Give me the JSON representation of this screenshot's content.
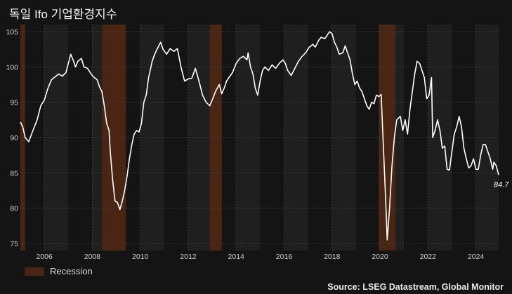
{
  "title": "독일 Ifo 기업환경지수",
  "source": "Source: LSEG Datastream, Global Monitor",
  "colors": {
    "background": "#141414",
    "plot_band_alt": "#1f1f1f",
    "recession": "#4a2513",
    "line": "#ffffff",
    "grid": "#3c3c3c"
  },
  "chart_data": {
    "type": "line",
    "title": "독일 Ifo 기업환경지수",
    "xlim": [
      2005.0,
      2024.95
    ],
    "ylim": [
      74,
      106
    ],
    "x_ticks": [
      2006,
      2008,
      2010,
      2012,
      2014,
      2016,
      2018,
      2020,
      2022,
      2024
    ],
    "y_ticks": [
      75,
      80,
      85,
      90,
      95,
      100,
      105
    ],
    "grid": true,
    "legend_position": "bottom-left",
    "legend": [
      {
        "label": "Recession",
        "color": "#4a2513"
      }
    ],
    "recessions": [
      [
        2005.0,
        2005.2
      ],
      [
        2008.4,
        2009.4
      ],
      [
        2012.9,
        2013.4
      ],
      [
        2019.95,
        2020.65
      ]
    ],
    "last_value_label": "84.7",
    "series": [
      {
        "color": "#ffffff",
        "points": [
          [
            2005.0,
            92.2
          ],
          [
            2005.1,
            91.5
          ],
          [
            2005.2,
            90.0
          ],
          [
            2005.35,
            89.4
          ],
          [
            2005.5,
            90.8
          ],
          [
            2005.7,
            92.5
          ],
          [
            2005.85,
            94.5
          ],
          [
            2006.0,
            95.3
          ],
          [
            2006.15,
            97.0
          ],
          [
            2006.3,
            98.2
          ],
          [
            2006.45,
            98.6
          ],
          [
            2006.6,
            99.0
          ],
          [
            2006.75,
            98.7
          ],
          [
            2006.9,
            99.2
          ],
          [
            2007.0,
            100.5
          ],
          [
            2007.1,
            101.8
          ],
          [
            2007.2,
            101.0
          ],
          [
            2007.3,
            100.0
          ],
          [
            2007.4,
            100.8
          ],
          [
            2007.55,
            101.2
          ],
          [
            2007.65,
            100.0
          ],
          [
            2007.8,
            99.8
          ],
          [
            2007.95,
            99.0
          ],
          [
            2008.05,
            98.6
          ],
          [
            2008.2,
            98.2
          ],
          [
            2008.3,
            97.2
          ],
          [
            2008.4,
            96.5
          ],
          [
            2008.5,
            94.5
          ],
          [
            2008.6,
            92.0
          ],
          [
            2008.7,
            91.0
          ],
          [
            2008.75,
            88.0
          ],
          [
            2008.85,
            84.0
          ],
          [
            2008.95,
            81.0
          ],
          [
            2009.05,
            80.8
          ],
          [
            2009.15,
            79.8
          ],
          [
            2009.25,
            81.0
          ],
          [
            2009.35,
            82.5
          ],
          [
            2009.45,
            84.5
          ],
          [
            2009.55,
            87.0
          ],
          [
            2009.65,
            89.0
          ],
          [
            2009.75,
            90.5
          ],
          [
            2009.85,
            91.0
          ],
          [
            2009.95,
            90.8
          ],
          [
            2010.05,
            92.0
          ],
          [
            2010.15,
            95.0
          ],
          [
            2010.25,
            96.0
          ],
          [
            2010.35,
            98.5
          ],
          [
            2010.5,
            100.8
          ],
          [
            2010.6,
            101.8
          ],
          [
            2010.7,
            102.5
          ],
          [
            2010.85,
            103.5
          ],
          [
            2010.95,
            102.5
          ],
          [
            2011.1,
            101.8
          ],
          [
            2011.25,
            102.6
          ],
          [
            2011.4,
            102.2
          ],
          [
            2011.55,
            102.6
          ],
          [
            2011.7,
            100.0
          ],
          [
            2011.85,
            98.0
          ],
          [
            2012.0,
            98.3
          ],
          [
            2012.15,
            98.4
          ],
          [
            2012.3,
            99.8
          ],
          [
            2012.45,
            98.0
          ],
          [
            2012.6,
            96.0
          ],
          [
            2012.75,
            95.0
          ],
          [
            2012.9,
            94.5
          ],
          [
            2013.0,
            95.3
          ],
          [
            2013.15,
            96.6
          ],
          [
            2013.3,
            97.5
          ],
          [
            2013.4,
            96.2
          ],
          [
            2013.5,
            97.0
          ],
          [
            2013.6,
            98.0
          ],
          [
            2013.7,
            98.5
          ],
          [
            2013.85,
            99.2
          ],
          [
            2014.0,
            100.5
          ],
          [
            2014.15,
            101.2
          ],
          [
            2014.3,
            101.5
          ],
          [
            2014.45,
            101.0
          ],
          [
            2014.5,
            102.0
          ],
          [
            2014.6,
            100.0
          ],
          [
            2014.7,
            99.0
          ],
          [
            2014.8,
            97.0
          ],
          [
            2014.9,
            96.0
          ],
          [
            2015.0,
            98.0
          ],
          [
            2015.1,
            99.5
          ],
          [
            2015.2,
            100.0
          ],
          [
            2015.35,
            99.5
          ],
          [
            2015.5,
            100.3
          ],
          [
            2015.65,
            99.8
          ],
          [
            2015.8,
            100.5
          ],
          [
            2015.95,
            101.0
          ],
          [
            2016.05,
            100.5
          ],
          [
            2016.15,
            99.5
          ],
          [
            2016.3,
            98.8
          ],
          [
            2016.45,
            99.8
          ],
          [
            2016.6,
            100.8
          ],
          [
            2016.75,
            101.5
          ],
          [
            2016.9,
            102.0
          ],
          [
            2017.05,
            102.8
          ],
          [
            2017.2,
            103.2
          ],
          [
            2017.3,
            102.8
          ],
          [
            2017.45,
            103.8
          ],
          [
            2017.55,
            104.2
          ],
          [
            2017.7,
            104.0
          ],
          [
            2017.8,
            104.5
          ],
          [
            2017.9,
            105.0
          ],
          [
            2018.0,
            104.7
          ],
          [
            2018.1,
            103.5
          ],
          [
            2018.2,
            102.8
          ],
          [
            2018.3,
            101.8
          ],
          [
            2018.45,
            102.0
          ],
          [
            2018.55,
            103.0
          ],
          [
            2018.65,
            102.0
          ],
          [
            2018.75,
            101.0
          ],
          [
            2018.85,
            99.0
          ],
          [
            2018.95,
            97.5
          ],
          [
            2019.05,
            98.0
          ],
          [
            2019.15,
            97.0
          ],
          [
            2019.25,
            96.5
          ],
          [
            2019.35,
            95.5
          ],
          [
            2019.45,
            94.5
          ],
          [
            2019.55,
            94.0
          ],
          [
            2019.65,
            95.0
          ],
          [
            2019.75,
            94.8
          ],
          [
            2019.85,
            96.0
          ],
          [
            2019.95,
            95.8
          ],
          [
            2020.05,
            96.1
          ],
          [
            2020.15,
            88.0
          ],
          [
            2020.25,
            80.0
          ],
          [
            2020.3,
            75.5
          ],
          [
            2020.4,
            80.0
          ],
          [
            2020.5,
            86.0
          ],
          [
            2020.6,
            90.0
          ],
          [
            2020.7,
            92.5
          ],
          [
            2020.85,
            93.0
          ],
          [
            2020.95,
            91.0
          ],
          [
            2021.05,
            92.5
          ],
          [
            2021.15,
            90.5
          ],
          [
            2021.25,
            94.0
          ],
          [
            2021.35,
            96.5
          ],
          [
            2021.45,
            99.0
          ],
          [
            2021.55,
            100.8
          ],
          [
            2021.65,
            100.5
          ],
          [
            2021.75,
            99.5
          ],
          [
            2021.85,
            98.5
          ],
          [
            2021.95,
            95.5
          ],
          [
            2022.05,
            96.0
          ],
          [
            2022.15,
            98.5
          ],
          [
            2022.2,
            90.0
          ],
          [
            2022.3,
            91.0
          ],
          [
            2022.4,
            92.5
          ],
          [
            2022.5,
            91.0
          ],
          [
            2022.6,
            88.5
          ],
          [
            2022.7,
            88.8
          ],
          [
            2022.8,
            85.5
          ],
          [
            2022.9,
            85.4
          ],
          [
            2023.0,
            88.0
          ],
          [
            2023.1,
            90.5
          ],
          [
            2023.2,
            91.5
          ],
          [
            2023.3,
            93.0
          ],
          [
            2023.4,
            91.5
          ],
          [
            2023.5,
            88.5
          ],
          [
            2023.6,
            87.0
          ],
          [
            2023.7,
            85.7
          ],
          [
            2023.8,
            86.0
          ],
          [
            2023.9,
            87.0
          ],
          [
            2024.0,
            85.5
          ],
          [
            2024.1,
            85.5
          ],
          [
            2024.2,
            87.5
          ],
          [
            2024.3,
            89.0
          ],
          [
            2024.4,
            89.0
          ],
          [
            2024.5,
            88.0
          ],
          [
            2024.6,
            87.0
          ],
          [
            2024.7,
            85.5
          ],
          [
            2024.75,
            86.5
          ],
          [
            2024.85,
            86.0
          ],
          [
            2024.95,
            84.7
          ]
        ]
      }
    ]
  }
}
